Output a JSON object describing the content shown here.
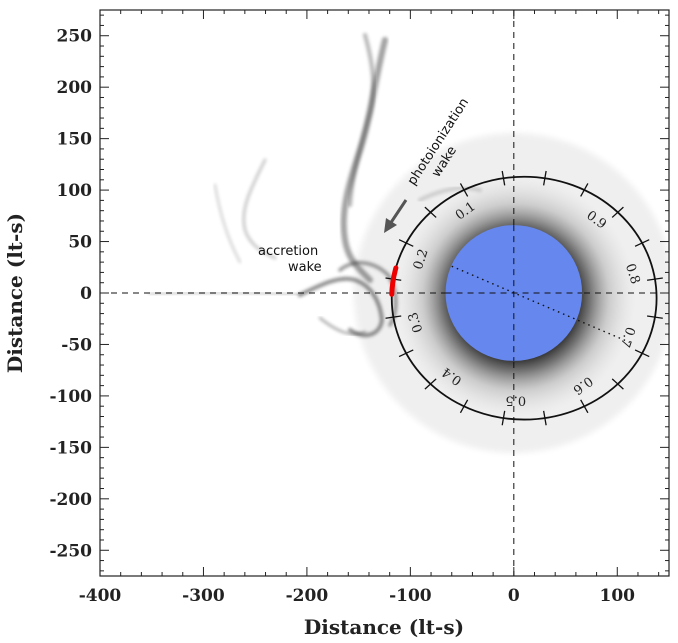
{
  "chart_data": {
    "type": "scatter",
    "xlabel": "Distance (lt-s)",
    "ylabel": "Distance (lt-s)",
    "xlim": [
      -400,
      150
    ],
    "ylim": [
      -275,
      275
    ],
    "x_ticks": [
      -400,
      -300,
      -200,
      -100,
      0,
      100
    ],
    "y_ticks": [
      -250,
      -200,
      -150,
      -100,
      -50,
      0,
      50,
      100,
      150,
      200,
      250
    ],
    "x_tick_labels": [
      "-400",
      "-300",
      "-200",
      "-100",
      "0",
      "100"
    ],
    "y_tick_labels": [
      "250",
      "200",
      "150",
      "100",
      "50",
      "0",
      "-50",
      "-100",
      "-150",
      "-200",
      "-250"
    ],
    "crosshair": {
      "x": 0,
      "y": 0,
      "style": "dashed"
    },
    "star": {
      "center": [
        0,
        0
      ],
      "radius": 66,
      "color": "#6688ee"
    },
    "orbit": {
      "center": [
        10,
        -5
      ],
      "semi_major": 128,
      "semi_minor": 118
    },
    "orbital_phases": [
      {
        "label": "0.1",
        "phase": 0.1
      },
      {
        "label": "0.2",
        "phase": 0.2
      },
      {
        "label": "0.3",
        "phase": 0.3
      },
      {
        "label": "0.4",
        "phase": 0.4
      },
      {
        "label": "0.5",
        "phase": 0.5
      },
      {
        "label": "0.6",
        "phase": 0.6
      },
      {
        "label": "0.7",
        "phase": 0.7
      },
      {
        "label": "0.8",
        "phase": 0.8
      },
      {
        "label": "0.9",
        "phase": 0.9
      }
    ],
    "highlight_arc": {
      "color": "#ee0000",
      "phase_start": 0.21,
      "phase_end": 0.245
    },
    "annotations": [
      {
        "text": [
          "accretion",
          "wake"
        ]
      },
      {
        "text": [
          "photoionization",
          "wake"
        ]
      }
    ]
  }
}
